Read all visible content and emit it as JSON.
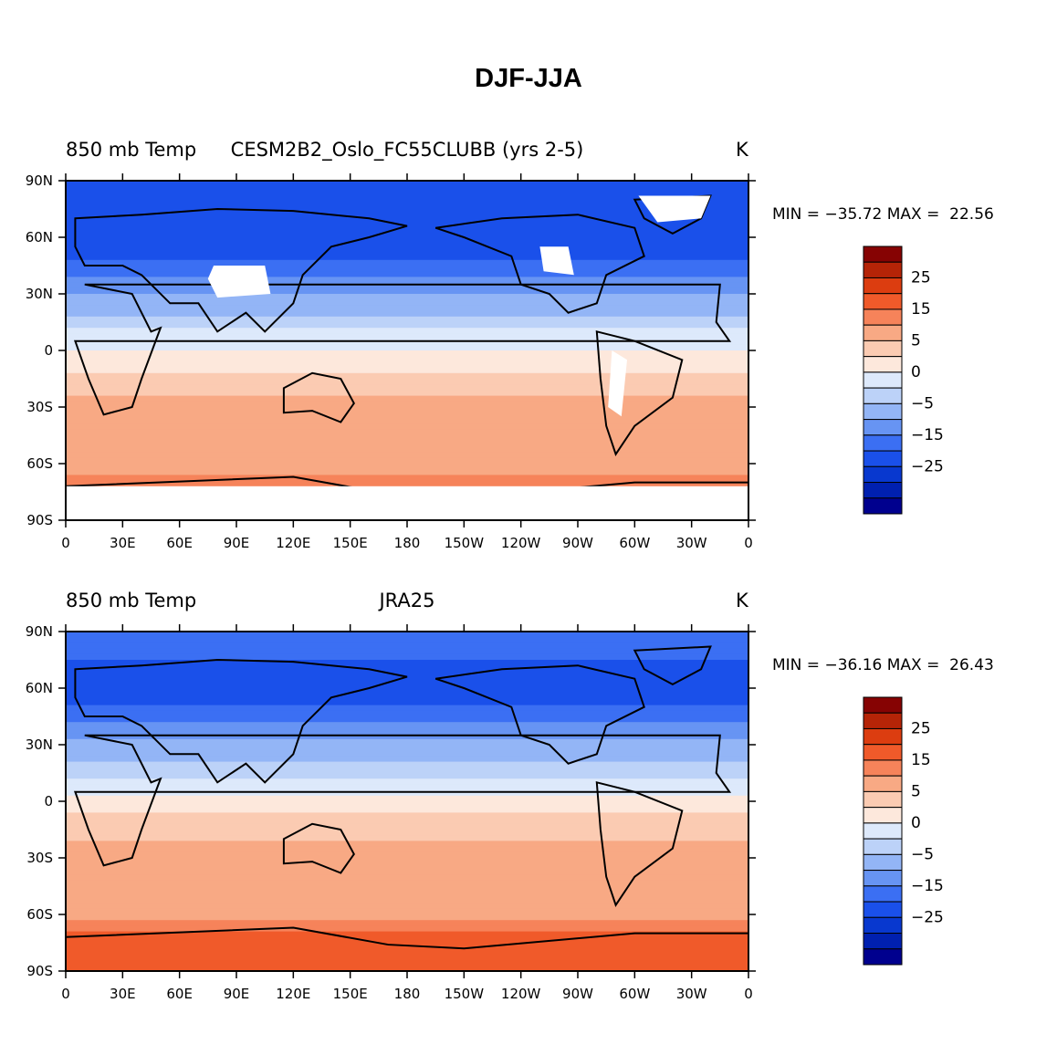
{
  "title": "DJF-JJA",
  "panels": [
    {
      "left_label": "850 mb Temp",
      "center_label": "CESM2B2_Oslo_FC55CLUBB (yrs 2-5)",
      "right_label": "K",
      "minmax": "MIN = −35.72 MAX =  22.56"
    },
    {
      "left_label": "850 mb Temp",
      "center_label": "JRA25",
      "right_label": "K",
      "minmax": "MIN = −36.16 MAX =  26.43"
    }
  ],
  "colors": {
    "levels": [
      "#00008e",
      "#0020b0",
      "#0838cf",
      "#1a50ea",
      "#3b6ff3",
      "#6794f3",
      "#93b5f6",
      "#bcd2f8",
      "#dde9fb",
      "#fde8dc",
      "#fbcbb2",
      "#f8a984",
      "#f6835a",
      "#f05a2a",
      "#dc3d10",
      "#b52407",
      "#860303"
    ],
    "land_outline": "#000000",
    "missing": "#ffffff"
  },
  "chart_data": [
    {
      "type": "heatmap",
      "title": "",
      "left_label": "850 mb Temp",
      "center_label": "CESM2B2_Oslo_FC55CLUBB (yrs 2-5)",
      "units": "K",
      "min": -35.72,
      "max": 22.56,
      "x_ticks": [
        "0",
        "30E",
        "60E",
        "90E",
        "120E",
        "150E",
        "180",
        "150W",
        "120W",
        "90W",
        "60W",
        "30W",
        "0"
      ],
      "y_ticks": [
        "90N",
        "60N",
        "30N",
        "0",
        "30S",
        "60S",
        "90S"
      ],
      "colorbar_ticks": [
        "25",
        "15",
        "5",
        "0",
        "−5",
        "−15",
        "−25"
      ],
      "colorbar_levels": [
        -35,
        -30,
        -25,
        -20,
        -15,
        -10,
        -5,
        -2.5,
        0,
        2.5,
        5,
        10,
        15,
        20,
        25,
        30
      ],
      "zonal_mean_profile": [
        {
          "lat": 90,
          "value": -20
        },
        {
          "lat": 75,
          "value": -22
        },
        {
          "lat": 60,
          "value": -25
        },
        {
          "lat": 45,
          "value": -18
        },
        {
          "lat": 30,
          "value": -10
        },
        {
          "lat": 15,
          "value": -3
        },
        {
          "lat": 0,
          "value": 0
        },
        {
          "lat": -15,
          "value": 3
        },
        {
          "lat": -30,
          "value": 6
        },
        {
          "lat": -45,
          "value": 6
        },
        {
          "lat": -60,
          "value": 8
        },
        {
          "lat": -75,
          "value": 12
        }
      ]
    },
    {
      "type": "heatmap",
      "title": "",
      "left_label": "850 mb Temp",
      "center_label": "JRA25",
      "units": "K",
      "min": -36.16,
      "max": 26.43,
      "x_ticks": [
        "0",
        "30E",
        "60E",
        "90E",
        "120E",
        "150E",
        "180",
        "150W",
        "120W",
        "90W",
        "60W",
        "30W",
        "0"
      ],
      "y_ticks": [
        "90N",
        "60N",
        "30N",
        "0",
        "30S",
        "60S",
        "90S"
      ],
      "colorbar_ticks": [
        "25",
        "15",
        "5",
        "0",
        "−5",
        "−15",
        "−25"
      ],
      "colorbar_levels": [
        -35,
        -30,
        -25,
        -20,
        -15,
        -10,
        -5,
        -2.5,
        0,
        2.5,
        5,
        10,
        15,
        20,
        25,
        30
      ],
      "zonal_mean_profile": [
        {
          "lat": 90,
          "value": -18
        },
        {
          "lat": 75,
          "value": -20
        },
        {
          "lat": 60,
          "value": -24
        },
        {
          "lat": 45,
          "value": -17
        },
        {
          "lat": 30,
          "value": -9
        },
        {
          "lat": 15,
          "value": -3
        },
        {
          "lat": 0,
          "value": 1
        },
        {
          "lat": -15,
          "value": 4
        },
        {
          "lat": -30,
          "value": 7
        },
        {
          "lat": -45,
          "value": 6
        },
        {
          "lat": -60,
          "value": 8
        },
        {
          "lat": -75,
          "value": 18
        }
      ]
    }
  ]
}
